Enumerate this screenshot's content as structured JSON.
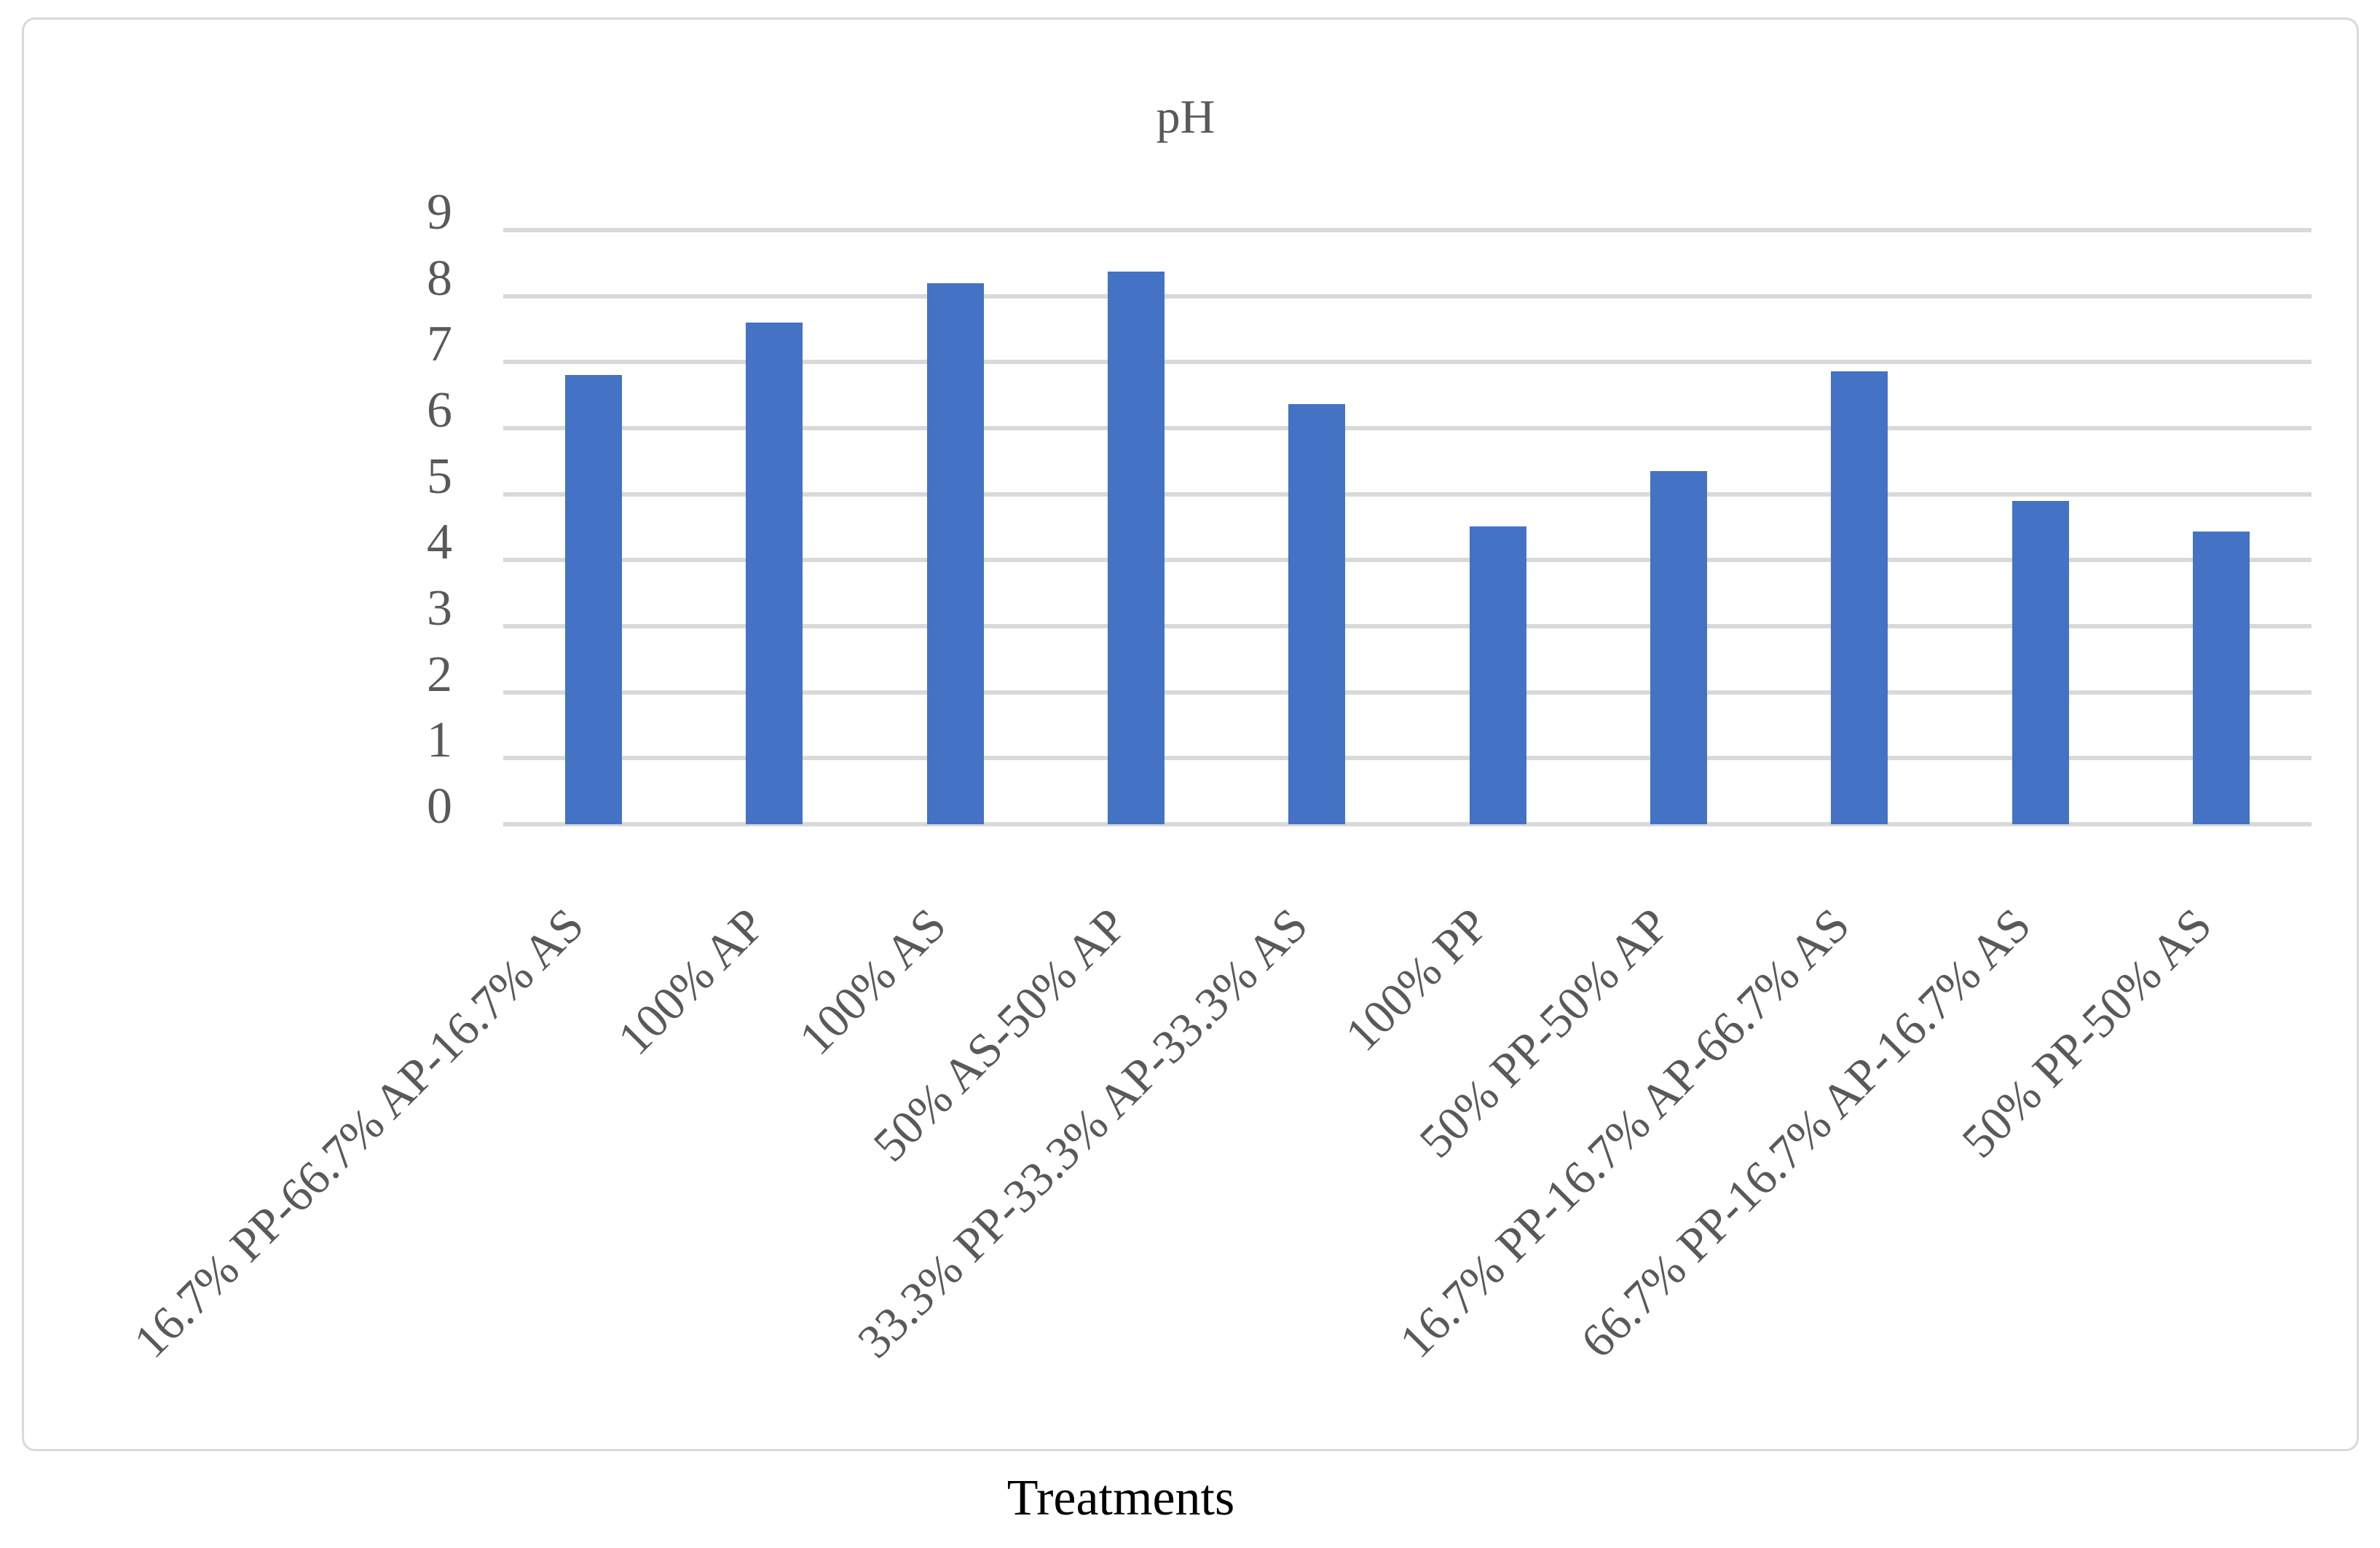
{
  "chart_data": {
    "type": "bar",
    "title": "pH",
    "xlabel": "Treatments",
    "ylabel": "",
    "categories": [
      "16.7% PP-66.7% AP-16.7% AS",
      "100% AP",
      "100% AS",
      "50% AS-50% AP",
      "33.3% PP-33.3% AP-33.3% AS",
      "100% PP",
      "50% PP-50% AP",
      "16.7% PP-16.7% AP-66.7% AS",
      "66.7% PP-16.7% AP-16.7% AS",
      "50% PP-50% AS"
    ],
    "values": [
      6.8,
      7.6,
      8.2,
      8.37,
      6.36,
      4.51,
      5.35,
      6.86,
      4.9,
      4.43
    ],
    "ylim": [
      0,
      9
    ],
    "ytick_step": 1,
    "yticks": [
      "0",
      "1",
      "2",
      "3",
      "4",
      "5",
      "6",
      "7",
      "8",
      "9"
    ],
    "grid": true,
    "legend": "none",
    "bar_color": "#4472C4",
    "gridline_color": "#D9D9D9",
    "frame_border_color": "#D9D9D9",
    "axis_text_color": "#595959",
    "title_color": "#595959",
    "xlabel_title_color": "#000000"
  }
}
